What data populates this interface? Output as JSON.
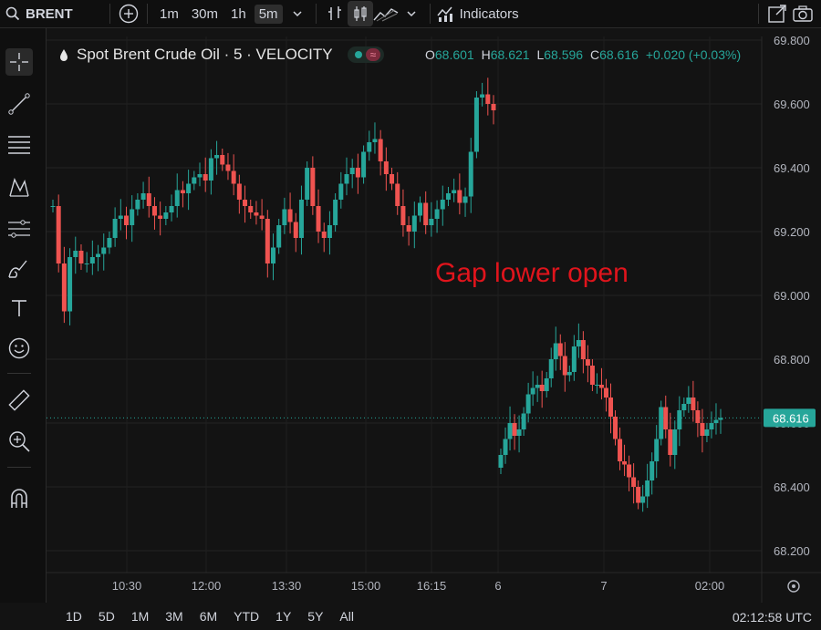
{
  "toolbar": {
    "symbol": "BRENT",
    "intervals": [
      "1m",
      "30m",
      "1h",
      "5m"
    ],
    "active_interval": "5m",
    "indicators_label": "Indicators",
    "icons": [
      "search-icon",
      "plus-circle-icon",
      "chevron-down-icon",
      "bar-style-icon",
      "candle-style-icon",
      "area-style-icon",
      "chevron-down-icon",
      "indicators-icon",
      "external-link-icon",
      "camera-icon"
    ]
  },
  "legend": {
    "title": "Spot Brent Crude Oil · 5 · VELOCITY",
    "O": "68.601",
    "H": "68.621",
    "L": "68.596",
    "C": "68.616",
    "change": "+0.020 (+0.03%)"
  },
  "annotation": "Gap lower open",
  "range_buttons": [
    "1D",
    "5D",
    "1M",
    "3M",
    "6M",
    "YTD",
    "1Y",
    "5Y",
    "All"
  ],
  "clock": "02:12:58 UTC",
  "colors": {
    "up": "#26a69a",
    "down": "#ef5350",
    "background": "#131313",
    "annotation": "#e0141c",
    "price_tag": "#26a69a"
  },
  "left_tools": [
    "crosshair-icon",
    "trendline-icon",
    "fib-icon",
    "pattern-icon",
    "projection-icon",
    "brush-icon",
    "text-icon",
    "emoji-icon",
    "ruler-icon",
    "zoom-icon",
    "magnet-icon"
  ],
  "chart_data": {
    "type": "candlestick",
    "title": "Spot Brent Crude Oil · 5 · VELOCITY",
    "yticks": [
      "69.800",
      "69.600",
      "69.400",
      "69.200",
      "69.000",
      "68.800",
      "68.600",
      "68.400",
      "68.200"
    ],
    "xticks": [
      "10:30",
      "12:00",
      "13:30",
      "15:00",
      "16:15",
      "6",
      "7",
      "02:00"
    ],
    "last_price": "68.616",
    "ylim": [
      68.13,
      69.84
    ],
    "segments": [
      {
        "note": "session 1",
        "close": [
          69.28,
          69.1,
          68.95,
          69.12,
          69.14,
          69.1,
          69.1,
          69.12,
          69.13,
          69.15,
          69.18,
          69.24,
          69.25,
          69.22,
          69.27,
          69.3,
          69.32,
          69.28,
          69.25,
          69.24,
          69.26,
          69.28,
          69.33,
          69.32,
          69.35,
          69.37,
          69.38,
          69.36,
          69.43,
          69.44,
          69.41,
          69.39,
          69.35,
          69.3,
          69.28,
          69.26,
          69.25,
          69.24,
          69.1,
          69.15,
          69.22,
          69.27,
          69.23,
          69.18,
          69.3,
          69.4,
          69.28,
          69.2,
          69.18,
          69.22,
          69.3,
          69.35,
          69.38,
          69.4,
          69.37,
          69.45,
          69.48,
          69.49,
          69.42,
          69.38,
          69.35,
          69.28,
          69.22,
          69.2,
          69.25,
          69.29,
          69.22,
          69.24,
          69.27,
          69.3,
          69.32,
          69.33,
          69.29,
          69.31,
          69.45,
          69.62,
          69.63,
          69.6,
          69.58
        ],
        "color": "varies"
      },
      {
        "note": "session 2 after gap",
        "close": [
          68.5,
          68.55,
          68.6,
          68.56,
          68.58,
          68.63,
          68.69,
          68.71,
          68.72,
          68.7,
          68.74,
          68.8,
          68.85,
          68.81,
          68.75,
          68.76,
          68.84,
          68.86,
          68.8,
          68.78,
          68.72,
          68.72,
          68.71,
          68.68,
          68.62,
          68.55,
          68.48,
          68.47,
          68.43,
          68.4,
          68.35,
          68.37,
          68.42,
          68.48,
          68.55,
          68.65,
          68.58,
          68.5,
          68.58,
          68.64,
          68.66,
          68.68,
          68.64,
          68.6,
          68.56,
          68.58,
          68.6,
          68.61,
          68.616
        ],
        "color": "varies"
      }
    ]
  }
}
